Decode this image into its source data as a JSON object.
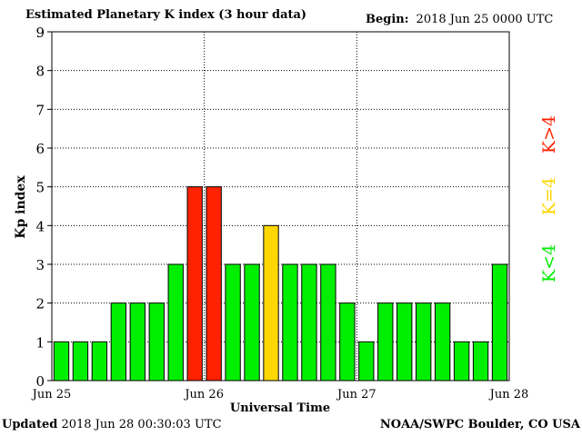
{
  "header": {
    "title": "Estimated Planetary K index (3 hour data)",
    "begin_label": "Begin:",
    "begin_value": "2018 Jun 25 0000 UTC"
  },
  "footer": {
    "updated_label": "Updated",
    "updated_value": "2018 Jun 28 00:30:03 UTC",
    "credit": "NOAA/SWPC Boulder, CO USA"
  },
  "colors": {
    "low": "#00ee00",
    "mid": "#ffd700",
    "high": "#ff2200"
  },
  "legend": {
    "low": "K<4",
    "mid": "K=4",
    "high": "K>4"
  },
  "chart_data": {
    "type": "bar",
    "xlabel": "Universal Time",
    "ylabel": "Kp index",
    "ylim": [
      0,
      9
    ],
    "yticks": [
      "0",
      "1",
      "2",
      "3",
      "4",
      "5",
      "6",
      "7",
      "8",
      "9"
    ],
    "xticks": [
      "Jun 25",
      "Jun 26",
      "Jun 27",
      "Jun 28"
    ],
    "grid": true,
    "values": [
      1,
      1,
      1,
      2,
      2,
      2,
      3,
      5,
      5,
      3,
      3,
      4,
      3,
      3,
      3,
      2,
      1,
      2,
      2,
      2,
      2,
      1,
      1,
      3
    ]
  }
}
